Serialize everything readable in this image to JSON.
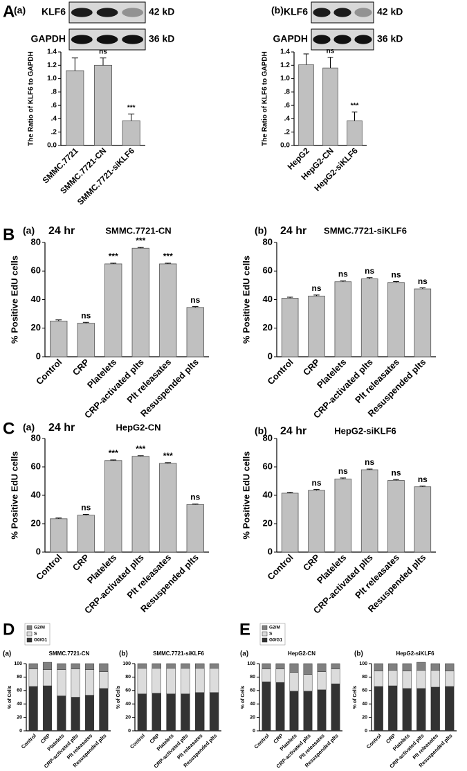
{
  "panel_labels": [
    "A",
    "B",
    "C",
    "D",
    "E"
  ],
  "chart_data": [
    {
      "type": "bar",
      "sublabel": "(a)",
      "blot": [
        {
          "protein": "KLF6",
          "size": "42 kD"
        },
        {
          "protein": "GAPDH",
          "size": "36 kD"
        }
      ],
      "ylabel": "The Ratio of KLF6 to GAPDH",
      "categories": [
        "SMMC.7721",
        "SMMC.7721-CN",
        "SMMC.7721-siKLF6"
      ],
      "values": [
        1.12,
        1.2,
        0.37
      ],
      "errors": [
        0.19,
        0.11,
        0.1
      ],
      "annotations": [
        null,
        "ns",
        "***"
      ],
      "ylim": [
        0,
        1.4
      ],
      "yticks": [
        {
          "value": 0,
          "label": "0.0"
        },
        {
          "value": 0.2,
          "label": ".2"
        },
        {
          "value": 0.4,
          "label": ".4"
        },
        {
          "value": 0.6,
          "label": ".6"
        },
        {
          "value": 0.8,
          "label": ".8"
        },
        {
          "value": 1,
          "label": "1.0"
        },
        1.2,
        1.4
      ],
      "color": "#c0c0c0"
    },
    {
      "type": "bar",
      "sublabel": "(b)",
      "blot": [
        {
          "protein": "KLF6",
          "size": "42 kD"
        },
        {
          "protein": "GAPDH",
          "size": "36 kD"
        }
      ],
      "ylabel": "The Ratio of KLF6 to GAPDH",
      "categories": [
        "HepG2",
        "HepG2-CN",
        "HepG2-siKLF6"
      ],
      "values": [
        1.21,
        1.16,
        0.37
      ],
      "errors": [
        0.16,
        0.16,
        0.13
      ],
      "annotations": [
        null,
        "ns",
        "***"
      ],
      "ylim": [
        0,
        1.4
      ],
      "yticks": [
        {
          "value": 0,
          "label": "0.0"
        },
        {
          "value": 0.2,
          "label": ".2"
        },
        {
          "value": 0.4,
          "label": ".4"
        },
        {
          "value": 0.6,
          "label": ".6"
        },
        {
          "value": 0.8,
          "label": ".8"
        },
        {
          "value": 1,
          "label": "1.0"
        },
        1.2,
        1.4
      ],
      "color": "#c0c0c0"
    },
    {
      "type": "bar",
      "sublabel": "(a)",
      "time_label": "24 hr",
      "title": "SMMC.7721-CN",
      "ylabel": "% Positive EdU cells",
      "categories": [
        "Control",
        "CRP",
        "Platelets",
        "CRP-activated plts",
        "Plt releasates",
        "Resuspended plts"
      ],
      "values": [
        25,
        23.5,
        65,
        76,
        65,
        34.5
      ],
      "errors": [
        0.8,
        0.6,
        0.5,
        0.5,
        0.5,
        0.6
      ],
      "annotations": [
        null,
        "ns",
        "***",
        "***",
        "***",
        "ns"
      ],
      "ylim": [
        0,
        80
      ],
      "yticks": [
        0,
        20,
        40,
        60,
        80
      ],
      "color": "#c0c0c0"
    },
    {
      "type": "bar",
      "sublabel": "(b)",
      "time_label": "24 hr",
      "title": "SMMC.7721-siKLF6",
      "ylabel": "% Positive EdU cells",
      "categories": [
        "Control",
        "CRP",
        "Platelets",
        "CRP-activated plts",
        "Plt releasates",
        "Resuspended plts"
      ],
      "values": [
        41,
        42.5,
        52.5,
        54.5,
        52,
        47.5
      ],
      "errors": [
        0.7,
        0.7,
        0.6,
        0.9,
        0.6,
        0.7
      ],
      "annotations": [
        null,
        "ns",
        "ns",
        "ns",
        "ns",
        "ns"
      ],
      "ylim": [
        0,
        80
      ],
      "yticks": [
        0,
        20,
        40,
        60,
        80
      ],
      "color": "#c0c0c0"
    },
    {
      "type": "bar",
      "sublabel": "(a)",
      "time_label": "24 hr",
      "title": "HepG2-CN",
      "ylabel": "% Positive EdU cells",
      "categories": [
        "Control",
        "CRP",
        "Platelets",
        "CRP-activated plts",
        "Plt releasates",
        "Resuspended plts"
      ],
      "values": [
        23.5,
        26,
        64.5,
        67.5,
        62.5,
        33.5
      ],
      "errors": [
        0.5,
        0.6,
        0.4,
        0.4,
        0.5,
        0.4
      ],
      "annotations": [
        null,
        "ns",
        "***",
        "***",
        "***",
        "ns"
      ],
      "ylim": [
        0,
        80
      ],
      "yticks": [
        0,
        20,
        40,
        60,
        80
      ],
      "color": "#c0c0c0"
    },
    {
      "type": "bar",
      "sublabel": "(b)",
      "time_label": "24 hr",
      "title": "HepG2-siKLF6",
      "ylabel": "% Positive EdU cells",
      "categories": [
        "Control",
        "CRP",
        "Platelets",
        "CRP-activated plts",
        "Plt releasates",
        "Resuspended plts"
      ],
      "values": [
        41.5,
        43.5,
        51.5,
        58,
        50.5,
        46
      ],
      "errors": [
        0.6,
        0.6,
        0.7,
        0.5,
        0.6,
        0.5
      ],
      "annotations": [
        null,
        "ns",
        "ns",
        "ns",
        "ns",
        "ns"
      ],
      "ylim": [
        0,
        80
      ],
      "yticks": [
        0,
        20,
        40,
        60,
        80
      ],
      "color": "#c0c0c0"
    },
    {
      "type": "stacked_bar",
      "ylabel": "% of Cells",
      "categories": [
        "Control",
        "CRP",
        "Platelets",
        "CRP-activated plts",
        "Plt releasates",
        "Resuspended plts"
      ],
      "ylim": [
        0,
        100
      ],
      "yticks": [
        0,
        20,
        40,
        60,
        80,
        100
      ],
      "series": [
        {
          "name": "G2/M",
          "color": "#808080"
        },
        {
          "name": "S",
          "color": "#dcdcdc"
        },
        {
          "name": "G0/G1",
          "color": "#333333"
        }
      ],
      "subplots": [
        {
          "sublabel": "(a)",
          "title": "SMMC.7721-CN",
          "values": [
            [
              8,
              11,
              9,
              8,
              9,
              12
            ],
            [
              26,
              24,
              39,
              42,
              38,
              25
            ],
            [
              66,
              67,
              52,
              50,
              53,
              63
            ]
          ]
        },
        {
          "sublabel": "(b)",
          "title": "SMMC.7721-siKLF6",
          "values": [
            [
              7,
              7,
              7,
              7,
              7,
              7
            ],
            [
              38,
              37,
              38,
              38,
              36,
              36
            ],
            [
              55,
              56,
              55,
              55,
              57,
              57
            ]
          ]
        }
      ]
    },
    {
      "type": "stacked_bar",
      "ylabel": "% of Cells",
      "categories": [
        "Control",
        "CRP",
        "Platelets",
        "CRP-activated plts",
        "Plt releasates",
        "Resuspended plts"
      ],
      "ylim": [
        0,
        100
      ],
      "yticks": [
        0,
        20,
        40,
        60,
        80,
        100
      ],
      "series": [
        {
          "name": "G2/M",
          "color": "#808080"
        },
        {
          "name": "S",
          "color": "#dcdcdc"
        },
        {
          "name": "G0/G1",
          "color": "#333333"
        }
      ],
      "subplots": [
        {
          "sublabel": "(a)",
          "title": "HepG2-CN",
          "values": [
            [
              8,
              8,
              13,
              16,
              12,
              8
            ],
            [
              19,
              20,
              28,
              25,
              27,
              22
            ],
            [
              73,
              72,
              59,
              59,
              61,
              70
            ]
          ]
        },
        {
          "sublabel": "(b)",
          "title": "HepG2-siKLF6",
          "values": [
            [
              11,
              10,
              11,
              12,
              10,
              11
            ],
            [
              23,
              23,
              26,
              27,
              25,
              23
            ],
            [
              66,
              67,
              63,
              63,
              65,
              66
            ]
          ]
        }
      ]
    }
  ]
}
